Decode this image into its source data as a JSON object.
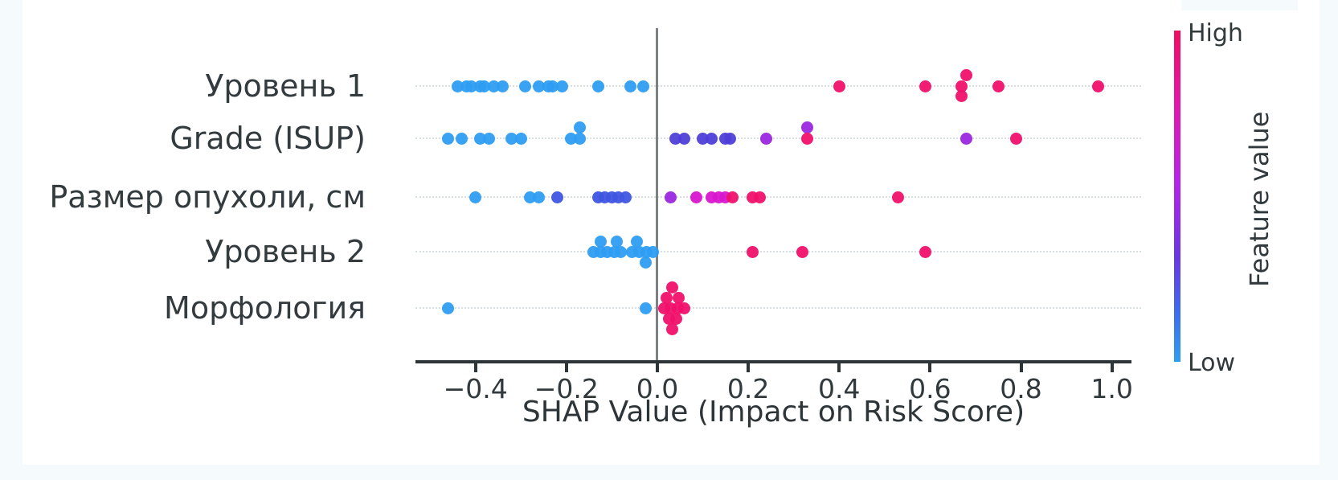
{
  "background": {
    "canvas": "#ffffff",
    "edge_tint": "#f5fbfd"
  },
  "chart_data": {
    "type": "scatter",
    "subtype": "shap-summary-beeswarm",
    "title": "",
    "xlabel": "SHAP Value (Impact on Risk Score)",
    "ylabel": "",
    "xlim": [
      -0.532,
      1.043
    ],
    "grid": "horizontal dotted line per feature row",
    "legend_position": "right colorbar",
    "xticks": [
      {
        "v": -0.4,
        "label": "−0.4"
      },
      {
        "v": -0.2,
        "label": "−0.2"
      },
      {
        "v": 0.0,
        "label": "0.0"
      },
      {
        "v": 0.2,
        "label": "0.2"
      },
      {
        "v": 0.4,
        "label": "0.4"
      },
      {
        "v": 0.6,
        "label": "0.6"
      },
      {
        "v": 0.8,
        "label": "0.8"
      },
      {
        "v": 1.0,
        "label": "1.0"
      }
    ],
    "colorbar": {
      "high": "High",
      "low": "Low",
      "label": "Feature value"
    },
    "colors": {
      "blue": "#2e9df2",
      "blue2": "#3f55e0",
      "indigo": "#4f3fd8",
      "purple": "#9b27e0",
      "magenta": "#d816ce",
      "pink": "#f0116b",
      "zero_line": "#7d8183",
      "axis": "#2e3538",
      "grid": "#d9dee1"
    },
    "features": [
      {
        "label": "Уровень 1",
        "points": [
          {
            "x": -0.44,
            "c": "blue"
          },
          {
            "x": -0.42,
            "c": "blue"
          },
          {
            "x": -0.41,
            "c": "blue"
          },
          {
            "x": -0.39,
            "c": "blue"
          },
          {
            "x": -0.38,
            "c": "blue"
          },
          {
            "x": -0.36,
            "c": "blue"
          },
          {
            "x": -0.34,
            "c": "blue"
          },
          {
            "x": -0.29,
            "c": "blue"
          },
          {
            "x": -0.26,
            "c": "blue"
          },
          {
            "x": -0.24,
            "c": "blue"
          },
          {
            "x": -0.23,
            "c": "blue"
          },
          {
            "x": -0.21,
            "c": "blue"
          },
          {
            "x": -0.13,
            "c": "blue"
          },
          {
            "x": -0.06,
            "c": "blue"
          },
          {
            "x": -0.03,
            "c": "blue"
          },
          {
            "x": 0.4,
            "c": "pink"
          },
          {
            "x": 0.59,
            "c": "pink"
          },
          {
            "x": 0.68,
            "c": "pink",
            "dy": -14
          },
          {
            "x": 0.67,
            "c": "pink"
          },
          {
            "x": 0.67,
            "c": "pink",
            "dy": 12
          },
          {
            "x": 0.75,
            "c": "pink"
          },
          {
            "x": 0.97,
            "c": "pink"
          }
        ]
      },
      {
        "label": "Grade (ISUP)",
        "points": [
          {
            "x": -0.46,
            "c": "blue"
          },
          {
            "x": -0.43,
            "c": "blue"
          },
          {
            "x": -0.39,
            "c": "blue"
          },
          {
            "x": -0.37,
            "c": "blue"
          },
          {
            "x": -0.32,
            "c": "blue"
          },
          {
            "x": -0.3,
            "c": "blue"
          },
          {
            "x": -0.19,
            "c": "blue"
          },
          {
            "x": -0.17,
            "c": "blue",
            "dy": -14
          },
          {
            "x": -0.17,
            "c": "blue"
          },
          {
            "x": 0.04,
            "c": "indigo"
          },
          {
            "x": 0.06,
            "c": "indigo"
          },
          {
            "x": 0.1,
            "c": "indigo"
          },
          {
            "x": 0.12,
            "c": "indigo"
          },
          {
            "x": 0.15,
            "c": "indigo"
          },
          {
            "x": 0.16,
            "c": "indigo"
          },
          {
            "x": 0.24,
            "c": "purple"
          },
          {
            "x": 0.33,
            "c": "purple",
            "dy": -14
          },
          {
            "x": 0.33,
            "c": "pink"
          },
          {
            "x": 0.68,
            "c": "purple"
          },
          {
            "x": 0.79,
            "c": "pink"
          }
        ]
      },
      {
        "label": "Размер опухоли, см",
        "points": [
          {
            "x": -0.4,
            "c": "blue"
          },
          {
            "x": -0.28,
            "c": "blue"
          },
          {
            "x": -0.26,
            "c": "blue"
          },
          {
            "x": -0.22,
            "c": "blue2"
          },
          {
            "x": -0.13,
            "c": "blue2"
          },
          {
            "x": -0.115,
            "c": "blue2"
          },
          {
            "x": -0.1,
            "c": "blue2"
          },
          {
            "x": -0.085,
            "c": "blue2"
          },
          {
            "x": -0.07,
            "c": "blue2"
          },
          {
            "x": 0.03,
            "c": "purple"
          },
          {
            "x": 0.085,
            "c": "magenta"
          },
          {
            "x": 0.12,
            "c": "magenta"
          },
          {
            "x": 0.135,
            "c": "magenta"
          },
          {
            "x": 0.15,
            "c": "magenta"
          },
          {
            "x": 0.165,
            "c": "pink"
          },
          {
            "x": 0.21,
            "c": "pink"
          },
          {
            "x": 0.225,
            "c": "pink"
          },
          {
            "x": 0.53,
            "c": "pink"
          }
        ]
      },
      {
        "label": "Уровень 2",
        "points": [
          {
            "x": -0.14,
            "c": "blue"
          },
          {
            "x": -0.125,
            "c": "blue",
            "dy": -13
          },
          {
            "x": -0.125,
            "c": "blue"
          },
          {
            "x": -0.11,
            "c": "blue"
          },
          {
            "x": -0.09,
            "c": "blue",
            "dy": -13
          },
          {
            "x": -0.095,
            "c": "blue"
          },
          {
            "x": -0.08,
            "c": "blue"
          },
          {
            "x": -0.055,
            "c": "blue"
          },
          {
            "x": -0.045,
            "c": "blue",
            "dy": -13
          },
          {
            "x": -0.04,
            "c": "blue"
          },
          {
            "x": -0.026,
            "c": "blue",
            "dy": 13
          },
          {
            "x": -0.024,
            "c": "blue"
          },
          {
            "x": -0.01,
            "c": "blue"
          },
          {
            "x": 0.21,
            "c": "pink"
          },
          {
            "x": 0.32,
            "c": "pink"
          },
          {
            "x": 0.59,
            "c": "pink"
          }
        ]
      },
      {
        "label": "Морфология",
        "points": [
          {
            "x": -0.46,
            "c": "blue"
          },
          {
            "x": -0.025,
            "c": "blue"
          },
          {
            "x": 0.033,
            "c": "pink",
            "dy": -26
          },
          {
            "x": 0.02,
            "c": "pink",
            "dy": -13
          },
          {
            "x": 0.047,
            "c": "pink",
            "dy": -13
          },
          {
            "x": 0.015,
            "c": "pink"
          },
          {
            "x": 0.03,
            "c": "pink"
          },
          {
            "x": 0.045,
            "c": "pink"
          },
          {
            "x": 0.06,
            "c": "pink"
          },
          {
            "x": 0.025,
            "c": "pink",
            "dy": 13
          },
          {
            "x": 0.042,
            "c": "pink",
            "dy": 13
          },
          {
            "x": 0.033,
            "c": "pink",
            "dy": 26
          }
        ]
      }
    ]
  }
}
